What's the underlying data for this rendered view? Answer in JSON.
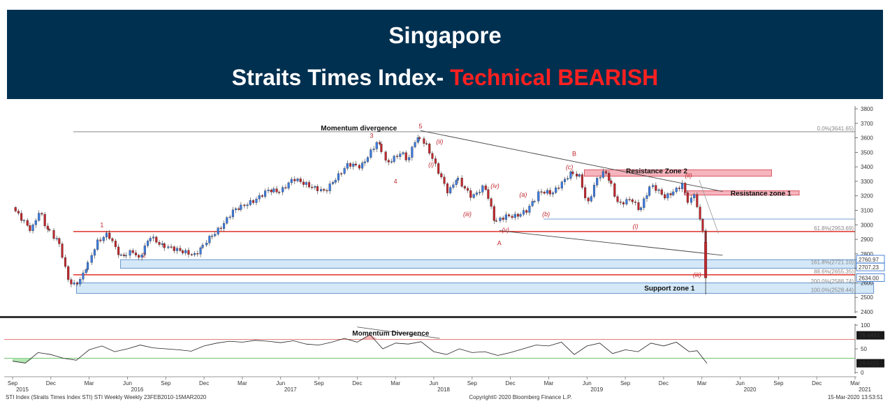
{
  "header": {
    "title": "Singapore",
    "subtitle_prefix": "Straits Times Index- ",
    "subtitle_highlight": "Technical BEARISH"
  },
  "colors": {
    "banner": "#003050",
    "bearish": "#ff2020",
    "candle_up": "#3d7be0",
    "candle_down": "#c0272d",
    "resistance_zone": "#f4a7b2",
    "support_zone": "#b8d8f4",
    "red_line": "#e0302a",
    "grey_line": "#888888"
  },
  "chart_data": [
    {
      "type": "candlestick",
      "series_name": "STI Index (Straits Times Index STI) STI Weekly",
      "ylim": [
        2400,
        3800
      ],
      "y_ticks": [
        2400,
        2500,
        2600,
        2700,
        2800,
        2900,
        3000,
        3100,
        3200,
        3300,
        3400,
        3500,
        3600,
        3700,
        3800
      ],
      "x_range": [
        "2015-09",
        "2021-03"
      ],
      "x_ticks": [
        {
          "date": "2015-09",
          "label": "Sep",
          "year": "2015"
        },
        {
          "date": "2015-12",
          "label": "Dec",
          "year": ""
        },
        {
          "date": "2016-03",
          "label": "Mar",
          "year": ""
        },
        {
          "date": "2016-06",
          "label": "Jun",
          "year": "2016"
        },
        {
          "date": "2016-09",
          "label": "Sep",
          "year": ""
        },
        {
          "date": "2016-12",
          "label": "Dec",
          "year": ""
        },
        {
          "date": "2017-03",
          "label": "Mar",
          "year": ""
        },
        {
          "date": "2017-06",
          "label": "Jun",
          "year": "2017"
        },
        {
          "date": "2017-09",
          "label": "Sep",
          "year": ""
        },
        {
          "date": "2017-12",
          "label": "Dec",
          "year": ""
        },
        {
          "date": "2018-03",
          "label": "Mar",
          "year": ""
        },
        {
          "date": "2018-06",
          "label": "Jun",
          "year": "2018"
        },
        {
          "date": "2018-09",
          "label": "Sep",
          "year": ""
        },
        {
          "date": "2018-12",
          "label": "Dec",
          "year": ""
        },
        {
          "date": "2019-03",
          "label": "Mar",
          "year": ""
        },
        {
          "date": "2019-06",
          "label": "Jun",
          "year": "2019"
        },
        {
          "date": "2019-09",
          "label": "Sep",
          "year": ""
        },
        {
          "date": "2019-12",
          "label": "Dec",
          "year": ""
        },
        {
          "date": "2020-03",
          "label": "Mar",
          "year": ""
        },
        {
          "date": "2020-06",
          "label": "Jun",
          "year": "2020"
        },
        {
          "date": "2020-09",
          "label": "Sep",
          "year": ""
        },
        {
          "date": "2020-12",
          "label": "Dec",
          "year": ""
        },
        {
          "date": "2021-03",
          "label": "Mar",
          "year": "2021"
        }
      ],
      "price_path": [
        [
          "2015-09-01",
          3120
        ],
        [
          "2015-10-15",
          2960
        ],
        [
          "2015-11-05",
          3100
        ],
        [
          "2015-11-20",
          2980
        ],
        [
          "2015-12-20",
          2880
        ],
        [
          "2016-01-10",
          2640
        ],
        [
          "2016-01-22",
          2580
        ],
        [
          "2016-02-10",
          2620
        ],
        [
          "2016-03-01",
          2750
        ],
        [
          "2016-03-20",
          2880
        ],
        [
          "2016-04-15",
          2940
        ],
        [
          "2016-05-15",
          2780
        ],
        [
          "2016-06-15",
          2820
        ],
        [
          "2016-06-27",
          2760
        ],
        [
          "2016-07-25",
          2920
        ],
        [
          "2016-08-20",
          2860
        ],
        [
          "2016-09-15",
          2840
        ],
        [
          "2016-11-10",
          2790
        ],
        [
          "2016-12-10",
          2900
        ],
        [
          "2017-01-10",
          2980
        ],
        [
          "2017-02-10",
          3100
        ],
        [
          "2017-04-01",
          3170
        ],
        [
          "2017-05-01",
          3240
        ],
        [
          "2017-06-01",
          3230
        ],
        [
          "2017-07-01",
          3320
        ],
        [
          "2017-08-15",
          3260
        ],
        [
          "2017-09-15",
          3230
        ],
        [
          "2017-11-10",
          3420
        ],
        [
          "2017-12-10",
          3400
        ],
        [
          "2018-01-20",
          3580
        ],
        [
          "2018-02-10",
          3420
        ],
        [
          "2018-03-15",
          3500
        ],
        [
          "2018-04-01",
          3440
        ],
        [
          "2018-04-15",
          3580
        ],
        [
          "2018-05-01",
          3600
        ],
        [
          "2018-05-15",
          3540
        ],
        [
          "2018-06-10",
          3380
        ],
        [
          "2018-07-05",
          3220
        ],
        [
          "2018-07-25",
          3320
        ],
        [
          "2018-09-01",
          3190
        ],
        [
          "2018-10-01",
          3270
        ],
        [
          "2018-10-25",
          3020
        ],
        [
          "2018-11-20",
          3060
        ],
        [
          "2018-12-15",
          3060
        ],
        [
          "2019-01-10",
          3100
        ],
        [
          "2019-02-10",
          3230
        ],
        [
          "2019-03-10",
          3220
        ],
        [
          "2019-04-25",
          3360
        ],
        [
          "2019-05-15",
          3330
        ],
        [
          "2019-06-01",
          3130
        ],
        [
          "2019-06-25",
          3320
        ],
        [
          "2019-07-15",
          3370
        ],
        [
          "2019-08-15",
          3140
        ],
        [
          "2019-09-15",
          3180
        ],
        [
          "2019-10-05",
          3100
        ],
        [
          "2019-11-01",
          3280
        ],
        [
          "2019-12-05",
          3190
        ],
        [
          "2019-12-30",
          3240
        ],
        [
          "2020-01-15",
          3280
        ],
        [
          "2020-01-31",
          3140
        ],
        [
          "2020-02-14",
          3220
        ],
        [
          "2020-02-28",
          3010
        ],
        [
          "2020-03-06",
          2950
        ],
        [
          "2020-03-13",
          2634
        ]
      ],
      "wave_labels": [
        {
          "text": "1",
          "date": "2016-04-01",
          "price": 2985,
          "italic": false
        },
        {
          "text": "2",
          "date": "2016-07-10",
          "price": 2775,
          "italic": false
        },
        {
          "text": "3",
          "date": "2018-01-05",
          "price": 3600,
          "italic": false
        },
        {
          "text": "4",
          "date": "2018-03-01",
          "price": 3285,
          "italic": false
        },
        {
          "text": "5",
          "date": "2018-04-30",
          "price": 3665,
          "italic": false
        },
        {
          "text": "(i)",
          "date": "2018-05-25",
          "price": 3400,
          "italic": true
        },
        {
          "text": "(ii)",
          "date": "2018-06-15",
          "price": 3560,
          "italic": true
        },
        {
          "text": "(iii)",
          "date": "2018-08-20",
          "price": 3060,
          "italic": true
        },
        {
          "text": "(iv)",
          "date": "2018-10-25",
          "price": 3255,
          "italic": true
        },
        {
          "text": "(v)",
          "date": "2018-11-20",
          "price": 2950,
          "italic": true
        },
        {
          "text": "A",
          "date": "2018-11-05",
          "price": 2860,
          "italic": false
        },
        {
          "text": "(a)",
          "date": "2019-01-01",
          "price": 3195,
          "italic": true
        },
        {
          "text": "(b)",
          "date": "2019-02-25",
          "price": 3060,
          "italic": true
        },
        {
          "text": "(c)",
          "date": "2019-04-20",
          "price": 3385,
          "italic": true
        },
        {
          "text": "B",
          "date": "2019-05-01",
          "price": 3475,
          "italic": false
        },
        {
          "text": "(i)",
          "date": "2019-09-25",
          "price": 2975,
          "italic": true
        },
        {
          "text": "(ii)",
          "date": "2020-01-30",
          "price": 3325,
          "italic": true
        },
        {
          "text": "(iii)",
          "date": "2020-02-20",
          "price": 2640,
          "italic": true
        }
      ],
      "annotations": [
        {
          "text": "Momentum divergence",
          "date": "2017-12-05",
          "price": 3650
        },
        {
          "text": "Resistance Zone 2",
          "date": "2019-11-15",
          "price": 3355
        },
        {
          "text": "Resistance zone 1",
          "date": "2020-07-20",
          "price": 3200
        },
        {
          "text": "Support zone 1",
          "date": "2019-12-15",
          "price": 2547
        }
      ],
      "fibonacci_levels": [
        {
          "label": "0.0%(3641.65)",
          "price": 3641.65
        },
        {
          "label": "61.8%(2953.69)",
          "price": 2953.69
        },
        {
          "label": "161.8%(2721.10)",
          "price": 2721.1
        },
        {
          "label": "88.6%(2655.35)",
          "price": 2655.35
        },
        {
          "label": "200.0%(2588.74)",
          "price": 2588.74
        },
        {
          "label": "100.0%(2528.44)",
          "price": 2528.44
        }
      ],
      "zones": [
        {
          "name": "Resistance Zone 2",
          "from": "2019-05-25",
          "to": "2020-08-15",
          "low": 3335,
          "high": 3380
        },
        {
          "name": "Resistance zone 1",
          "from": "2020-01-20",
          "to": "2020-10-20",
          "low": 3205,
          "high": 3235
        },
        {
          "name": "Support zone 1",
          "from": "2016-02-01",
          "to": "2021-04-15",
          "low": 2528,
          "high": 2600
        },
        {
          "name": "Support band",
          "from": "2016-05-15",
          "to": "2021-04-15",
          "low": 2700,
          "high": 2760
        }
      ],
      "price_tags": [
        {
          "value": "2760.97",
          "price": 2760.97,
          "color": "#1f66cc"
        },
        {
          "value": "2707.23",
          "price": 2707.23,
          "color": "#1f66cc"
        },
        {
          "value": "2634.00",
          "price": 2634.0,
          "color": "#1f66cc"
        }
      ]
    },
    {
      "type": "line",
      "series_name": "RSI",
      "ylim": [
        0,
        100
      ],
      "y_ticks": [
        0,
        50,
        100
      ],
      "levels": [
        70,
        30
      ],
      "annotation": "Momentum Divergence",
      "last_values": [
        "78.4483",
        "19.6115"
      ],
      "values": [
        [
          "2015-09-01",
          24
        ],
        [
          "2015-10-01",
          20
        ],
        [
          "2015-11-01",
          42
        ],
        [
          "2015-12-01",
          38
        ],
        [
          "2016-01-01",
          30
        ],
        [
          "2016-02-01",
          26
        ],
        [
          "2016-03-01",
          48
        ],
        [
          "2016-04-01",
          56
        ],
        [
          "2016-05-01",
          44
        ],
        [
          "2016-06-01",
          50
        ],
        [
          "2016-07-01",
          58
        ],
        [
          "2016-08-01",
          52
        ],
        [
          "2016-09-01",
          50
        ],
        [
          "2016-10-01",
          48
        ],
        [
          "2016-11-01",
          45
        ],
        [
          "2016-12-01",
          56
        ],
        [
          "2017-01-01",
          62
        ],
        [
          "2017-02-01",
          66
        ],
        [
          "2017-03-01",
          64
        ],
        [
          "2017-04-01",
          68
        ],
        [
          "2017-05-01",
          66
        ],
        [
          "2017-06-01",
          63
        ],
        [
          "2017-07-01",
          67
        ],
        [
          "2017-08-01",
          60
        ],
        [
          "2017-09-01",
          58
        ],
        [
          "2017-10-01",
          64
        ],
        [
          "2017-11-01",
          72
        ],
        [
          "2017-12-01",
          64
        ],
        [
          "2018-01-01",
          80
        ],
        [
          "2018-02-01",
          50
        ],
        [
          "2018-03-01",
          62
        ],
        [
          "2018-04-01",
          60
        ],
        [
          "2018-05-01",
          65
        ],
        [
          "2018-06-01",
          44
        ],
        [
          "2018-07-01",
          38
        ],
        [
          "2018-08-01",
          50
        ],
        [
          "2018-09-01",
          42
        ],
        [
          "2018-10-01",
          44
        ],
        [
          "2018-11-01",
          36
        ],
        [
          "2018-12-01",
          42
        ],
        [
          "2019-01-01",
          50
        ],
        [
          "2019-02-01",
          58
        ],
        [
          "2019-03-01",
          56
        ],
        [
          "2019-04-01",
          64
        ],
        [
          "2019-05-01",
          38
        ],
        [
          "2019-06-01",
          56
        ],
        [
          "2019-07-01",
          62
        ],
        [
          "2019-08-01",
          40
        ],
        [
          "2019-09-01",
          48
        ],
        [
          "2019-10-01",
          44
        ],
        [
          "2019-11-01",
          62
        ],
        [
          "2019-12-01",
          56
        ],
        [
          "2020-01-01",
          64
        ],
        [
          "2020-02-01",
          44
        ],
        [
          "2020-02-20",
          46
        ],
        [
          "2020-03-13",
          19.6
        ]
      ]
    }
  ],
  "footer": {
    "left": "STI Index (Straits Times Index STI) STI Weekly  Weekly 23FEB2010-15MAR2020",
    "center": "Copyright© 2020 Bloomberg Finance L.P.",
    "right": "15-Mar-2020 13:53:51"
  }
}
